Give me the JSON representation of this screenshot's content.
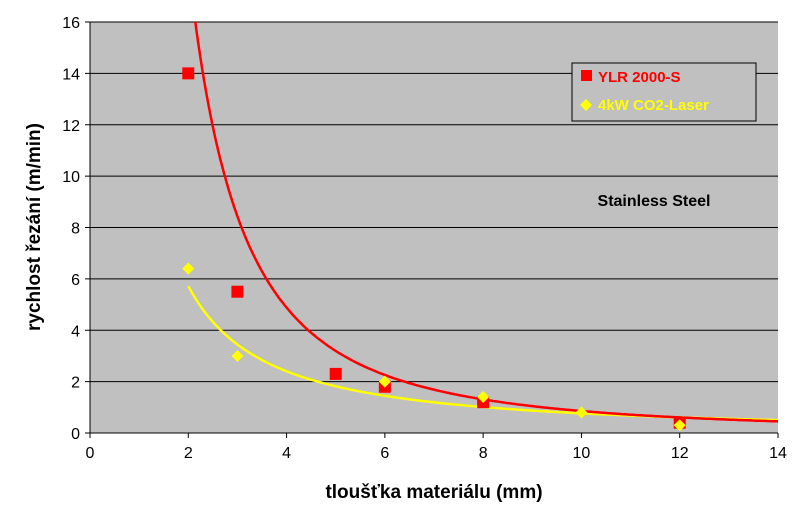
{
  "chart_data": {
    "type": "scatter",
    "title": "",
    "xlabel": "tloušťka materiálu (mm)",
    "ylabel": "rychlost řezání (m/min)",
    "xlim": [
      0,
      14
    ],
    "ylim": [
      0,
      16
    ],
    "x_ticks": [
      0,
      2,
      4,
      6,
      8,
      10,
      12,
      14
    ],
    "y_ticks": [
      0,
      2,
      4,
      6,
      8,
      10,
      12,
      14,
      16
    ],
    "grid": "horizontal",
    "legend_position": "top-right",
    "annotation": "Stainless Steel",
    "series": [
      {
        "name": "YLR 2000-S",
        "color": "#ff0000",
        "marker": "square",
        "points": [
          [
            2,
            14
          ],
          [
            3,
            5.5
          ],
          [
            5,
            2.3
          ],
          [
            6,
            1.8
          ],
          [
            8,
            1.2
          ],
          [
            12,
            0.4
          ]
        ],
        "trendline": {
          "a": 68,
          "b": -1.9,
          "x_range": [
            1.75,
            14
          ]
        }
      },
      {
        "name": "4kW CO2-Laser",
        "color": "#ffff00",
        "marker": "diamond",
        "points": [
          [
            2,
            6.4
          ],
          [
            3,
            3.0
          ],
          [
            6,
            2.0
          ],
          [
            8,
            1.4
          ],
          [
            10,
            0.8
          ],
          [
            12,
            0.3
          ]
        ],
        "trendline": {
          "a": 13.6,
          "b": -1.25,
          "x_range": [
            2,
            14
          ]
        }
      }
    ]
  }
}
